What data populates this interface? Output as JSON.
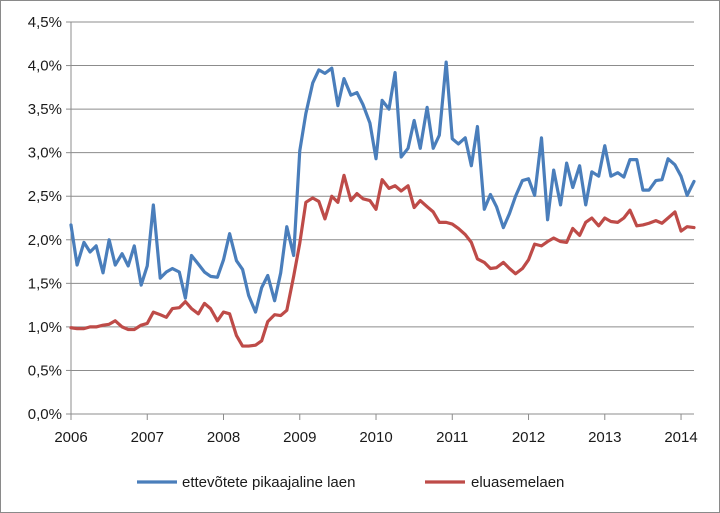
{
  "chart_data": {
    "type": "line",
    "title": "",
    "xlabel": "",
    "ylabel": "",
    "ylim": [
      0,
      4.5
    ],
    "xlim": [
      2006,
      2014.17
    ],
    "grid": "horizontal",
    "legend_position": "bottom",
    "y_ticks": [
      {
        "value": 0.0,
        "label": "0,0%"
      },
      {
        "value": 0.5,
        "label": "0,5%"
      },
      {
        "value": 1.0,
        "label": "1,0%"
      },
      {
        "value": 1.5,
        "label": "1,5%"
      },
      {
        "value": 2.0,
        "label": "2,0%"
      },
      {
        "value": 2.5,
        "label": "2,5%"
      },
      {
        "value": 3.0,
        "label": "3,0%"
      },
      {
        "value": 3.5,
        "label": "3,5%"
      },
      {
        "value": 4.0,
        "label": "4,0%"
      },
      {
        "value": 4.5,
        "label": "4,5%"
      }
    ],
    "x_ticks": [
      {
        "value": 2006,
        "label": "2006"
      },
      {
        "value": 2007,
        "label": "2007"
      },
      {
        "value": 2008,
        "label": "2008"
      },
      {
        "value": 2009,
        "label": "2009"
      },
      {
        "value": 2010,
        "label": "2010"
      },
      {
        "value": 2011,
        "label": "2011"
      },
      {
        "value": 2012,
        "label": "2012"
      },
      {
        "value": 2013,
        "label": "2013"
      },
      {
        "value": 2014,
        "label": "2014"
      }
    ],
    "series": [
      {
        "name": "ettevõtete pikaajaline  laen",
        "color": "#4a7ebb",
        "points": [
          [
            2006.0,
            2.17
          ],
          [
            2006.08,
            1.71
          ],
          [
            2006.17,
            1.97
          ],
          [
            2006.25,
            1.86
          ],
          [
            2006.33,
            1.93
          ],
          [
            2006.42,
            1.62
          ],
          [
            2006.5,
            2.0
          ],
          [
            2006.58,
            1.71
          ],
          [
            2006.67,
            1.84
          ],
          [
            2006.75,
            1.7
          ],
          [
            2006.83,
            1.93
          ],
          [
            2006.92,
            1.48
          ],
          [
            2007.0,
            1.7
          ],
          [
            2007.08,
            2.4
          ],
          [
            2007.17,
            1.56
          ],
          [
            2007.25,
            1.63
          ],
          [
            2007.33,
            1.67
          ],
          [
            2007.42,
            1.63
          ],
          [
            2007.5,
            1.33
          ],
          [
            2007.58,
            1.82
          ],
          [
            2007.67,
            1.72
          ],
          [
            2007.75,
            1.63
          ],
          [
            2007.83,
            1.58
          ],
          [
            2007.92,
            1.57
          ],
          [
            2008.0,
            1.77
          ],
          [
            2008.08,
            2.07
          ],
          [
            2008.17,
            1.76
          ],
          [
            2008.25,
            1.66
          ],
          [
            2008.33,
            1.36
          ],
          [
            2008.42,
            1.17
          ],
          [
            2008.5,
            1.45
          ],
          [
            2008.58,
            1.59
          ],
          [
            2008.67,
            1.3
          ],
          [
            2008.75,
            1.62
          ],
          [
            2008.83,
            2.15
          ],
          [
            2008.92,
            1.82
          ],
          [
            2009.0,
            3.02
          ],
          [
            2009.08,
            3.45
          ],
          [
            2009.17,
            3.8
          ],
          [
            2009.25,
            3.95
          ],
          [
            2009.33,
            3.91
          ],
          [
            2009.42,
            3.97
          ],
          [
            2009.5,
            3.54
          ],
          [
            2009.58,
            3.85
          ],
          [
            2009.67,
            3.66
          ],
          [
            2009.75,
            3.69
          ],
          [
            2009.83,
            3.55
          ],
          [
            2009.92,
            3.34
          ],
          [
            2010.0,
            2.93
          ],
          [
            2010.08,
            3.6
          ],
          [
            2010.17,
            3.5
          ],
          [
            2010.25,
            3.92
          ],
          [
            2010.33,
            2.95
          ],
          [
            2010.42,
            3.05
          ],
          [
            2010.5,
            3.37
          ],
          [
            2010.58,
            3.05
          ],
          [
            2010.67,
            3.52
          ],
          [
            2010.75,
            3.05
          ],
          [
            2010.83,
            3.2
          ],
          [
            2010.92,
            4.04
          ],
          [
            2011.0,
            3.16
          ],
          [
            2011.08,
            3.1
          ],
          [
            2011.17,
            3.17
          ],
          [
            2011.25,
            2.85
          ],
          [
            2011.33,
            3.3
          ],
          [
            2011.42,
            2.35
          ],
          [
            2011.5,
            2.52
          ],
          [
            2011.58,
            2.38
          ],
          [
            2011.67,
            2.14
          ],
          [
            2011.75,
            2.3
          ],
          [
            2011.83,
            2.5
          ],
          [
            2011.92,
            2.68
          ],
          [
            2012.0,
            2.7
          ],
          [
            2012.08,
            2.51
          ],
          [
            2012.17,
            3.17
          ],
          [
            2012.25,
            2.23
          ],
          [
            2012.33,
            2.8
          ],
          [
            2012.42,
            2.4
          ],
          [
            2012.5,
            2.88
          ],
          [
            2012.58,
            2.6
          ],
          [
            2012.67,
            2.85
          ],
          [
            2012.75,
            2.4
          ],
          [
            2012.83,
            2.78
          ],
          [
            2012.92,
            2.73
          ],
          [
            2013.0,
            3.08
          ],
          [
            2013.08,
            2.73
          ],
          [
            2013.17,
            2.77
          ],
          [
            2013.25,
            2.72
          ],
          [
            2013.33,
            2.92
          ],
          [
            2013.42,
            2.92
          ],
          [
            2013.5,
            2.57
          ],
          [
            2013.58,
            2.57
          ],
          [
            2013.67,
            2.68
          ],
          [
            2013.75,
            2.69
          ],
          [
            2013.83,
            2.93
          ],
          [
            2013.92,
            2.86
          ],
          [
            2014.0,
            2.73
          ],
          [
            2014.08,
            2.51
          ],
          [
            2014.17,
            2.67
          ]
        ]
      },
      {
        "name": "eluasemelaen",
        "color": "#be4b48",
        "points": [
          [
            2006.0,
            0.99
          ],
          [
            2006.08,
            0.98
          ],
          [
            2006.17,
            0.98
          ],
          [
            2006.25,
            1.0
          ],
          [
            2006.33,
            1.0
          ],
          [
            2006.42,
            1.02
          ],
          [
            2006.5,
            1.03
          ],
          [
            2006.58,
            1.07
          ],
          [
            2006.67,
            1.0
          ],
          [
            2006.75,
            0.97
          ],
          [
            2006.83,
            0.97
          ],
          [
            2006.92,
            1.02
          ],
          [
            2007.0,
            1.04
          ],
          [
            2007.08,
            1.17
          ],
          [
            2007.17,
            1.14
          ],
          [
            2007.25,
            1.11
          ],
          [
            2007.33,
            1.21
          ],
          [
            2007.42,
            1.22
          ],
          [
            2007.5,
            1.29
          ],
          [
            2007.58,
            1.21
          ],
          [
            2007.67,
            1.15
          ],
          [
            2007.75,
            1.27
          ],
          [
            2007.83,
            1.21
          ],
          [
            2007.92,
            1.07
          ],
          [
            2008.0,
            1.17
          ],
          [
            2008.08,
            1.15
          ],
          [
            2008.17,
            0.9
          ],
          [
            2008.25,
            0.78
          ],
          [
            2008.33,
            0.78
          ],
          [
            2008.42,
            0.79
          ],
          [
            2008.5,
            0.84
          ],
          [
            2008.58,
            1.06
          ],
          [
            2008.67,
            1.14
          ],
          [
            2008.75,
            1.13
          ],
          [
            2008.83,
            1.19
          ],
          [
            2008.92,
            1.58
          ],
          [
            2009.0,
            1.96
          ],
          [
            2009.08,
            2.43
          ],
          [
            2009.17,
            2.48
          ],
          [
            2009.25,
            2.44
          ],
          [
            2009.33,
            2.24
          ],
          [
            2009.42,
            2.5
          ],
          [
            2009.5,
            2.43
          ],
          [
            2009.58,
            2.74
          ],
          [
            2009.67,
            2.45
          ],
          [
            2009.75,
            2.53
          ],
          [
            2009.83,
            2.47
          ],
          [
            2009.92,
            2.45
          ],
          [
            2010.0,
            2.35
          ],
          [
            2010.08,
            2.69
          ],
          [
            2010.17,
            2.59
          ],
          [
            2010.25,
            2.62
          ],
          [
            2010.33,
            2.56
          ],
          [
            2010.42,
            2.62
          ],
          [
            2010.5,
            2.37
          ],
          [
            2010.58,
            2.45
          ],
          [
            2010.67,
            2.38
          ],
          [
            2010.75,
            2.32
          ],
          [
            2010.83,
            2.2
          ],
          [
            2010.92,
            2.2
          ],
          [
            2011.0,
            2.18
          ],
          [
            2011.08,
            2.13
          ],
          [
            2011.17,
            2.06
          ],
          [
            2011.25,
            1.97
          ],
          [
            2011.33,
            1.78
          ],
          [
            2011.42,
            1.74
          ],
          [
            2011.5,
            1.67
          ],
          [
            2011.58,
            1.68
          ],
          [
            2011.67,
            1.74
          ],
          [
            2011.75,
            1.67
          ],
          [
            2011.83,
            1.61
          ],
          [
            2011.92,
            1.67
          ],
          [
            2012.0,
            1.77
          ],
          [
            2012.08,
            1.95
          ],
          [
            2012.17,
            1.93
          ],
          [
            2012.25,
            1.98
          ],
          [
            2012.33,
            2.02
          ],
          [
            2012.42,
            1.98
          ],
          [
            2012.5,
            1.97
          ],
          [
            2012.58,
            2.13
          ],
          [
            2012.67,
            2.05
          ],
          [
            2012.75,
            2.2
          ],
          [
            2012.83,
            2.25
          ],
          [
            2012.92,
            2.16
          ],
          [
            2013.0,
            2.25
          ],
          [
            2013.08,
            2.21
          ],
          [
            2013.17,
            2.2
          ],
          [
            2013.25,
            2.25
          ],
          [
            2013.33,
            2.34
          ],
          [
            2013.42,
            2.16
          ],
          [
            2013.5,
            2.17
          ],
          [
            2013.58,
            2.19
          ],
          [
            2013.67,
            2.22
          ],
          [
            2013.75,
            2.19
          ],
          [
            2013.83,
            2.25
          ],
          [
            2013.92,
            2.32
          ],
          [
            2014.0,
            2.1
          ],
          [
            2014.08,
            2.15
          ],
          [
            2014.17,
            2.14
          ]
        ]
      }
    ]
  }
}
